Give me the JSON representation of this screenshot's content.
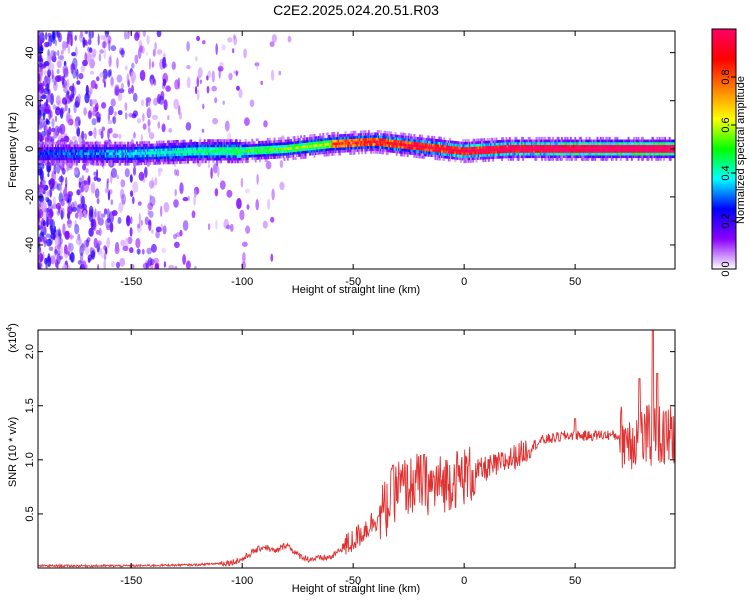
{
  "title": "C2E2.2025.024.20.51.R03",
  "chart_data": [
    {
      "type": "heatmap",
      "xlabel": "Height of straight line (km)",
      "ylabel": "Frequency (Hz)",
      "xlim": [
        -192,
        95
      ],
      "ylim": [
        -50,
        49
      ],
      "xticks": [
        -150,
        -100,
        -50,
        0,
        50
      ],
      "yticks": [
        -40,
        -20,
        0,
        20,
        40
      ],
      "colorbar": {
        "label": "Normalized spectral amplitude",
        "range": [
          0,
          1
        ],
        "ticks": [
          0.0,
          0.2,
          0.4,
          0.6,
          0.8
        ],
        "tick_labels": [
          "0.0",
          "0.2",
          "0.4",
          "0.6",
          "0.8"
        ],
        "colors": [
          "#ffffff",
          "#8b00ff",
          "#0000ff",
          "#00ffff",
          "#00ff00",
          "#ffff00",
          "#ff8000",
          "#ff0000",
          "#ff0066"
        ]
      },
      "ridge_center_hz": [
        {
          "x": -192,
          "y": -2
        },
        {
          "x": -150,
          "y": -2
        },
        {
          "x": -120,
          "y": -1
        },
        {
          "x": -100,
          "y": -1
        },
        {
          "x": -80,
          "y": 0
        },
        {
          "x": -60,
          "y": 2
        },
        {
          "x": -40,
          "y": 3
        },
        {
          "x": -20,
          "y": 1
        },
        {
          "x": -10,
          "y": 0
        },
        {
          "x": 0,
          "y": -1
        },
        {
          "x": 20,
          "y": 0
        },
        {
          "x": 60,
          "y": 0
        },
        {
          "x": 95,
          "y": 0
        }
      ]
    },
    {
      "type": "line",
      "xlabel": "Height of straight line (km)",
      "ylabel": "SNR (10 * v/v)",
      "scale_note": "(x10",
      "scale_exp": "4",
      "xlim": [
        -192,
        95
      ],
      "ylim": [
        0,
        2.2
      ],
      "xticks": [
        -150,
        -100,
        -50,
        0,
        50
      ],
      "yticks": [
        0.5,
        1.0,
        1.5,
        2.0
      ],
      "ytick_labels": [
        "0.5",
        "1.0",
        "1.5",
        "2.0"
      ],
      "color": "#e03030",
      "series": [
        {
          "values": [
            {
              "x": -192,
              "y": 0.02
            },
            {
              "x": -150,
              "y": 0.02
            },
            {
              "x": -120,
              "y": 0.03
            },
            {
              "x": -105,
              "y": 0.05
            },
            {
              "x": -100,
              "y": 0.08
            },
            {
              "x": -95,
              "y": 0.15
            },
            {
              "x": -90,
              "y": 0.2
            },
            {
              "x": -85,
              "y": 0.15
            },
            {
              "x": -80,
              "y": 0.22
            },
            {
              "x": -75,
              "y": 0.12
            },
            {
              "x": -70,
              "y": 0.08
            },
            {
              "x": -60,
              "y": 0.1
            },
            {
              "x": -55,
              "y": 0.18
            },
            {
              "x": -50,
              "y": 0.25
            },
            {
              "x": -45,
              "y": 0.35
            },
            {
              "x": -40,
              "y": 0.45
            },
            {
              "x": -35,
              "y": 0.55
            },
            {
              "x": -30,
              "y": 0.75
            },
            {
              "x": -25,
              "y": 0.75
            },
            {
              "x": -20,
              "y": 0.8
            },
            {
              "x": -15,
              "y": 0.75
            },
            {
              "x": -10,
              "y": 0.78
            },
            {
              "x": -5,
              "y": 0.82
            },
            {
              "x": 0,
              "y": 0.85
            },
            {
              "x": 5,
              "y": 0.88
            },
            {
              "x": 10,
              "y": 0.92
            },
            {
              "x": 15,
              "y": 0.95
            },
            {
              "x": 20,
              "y": 1.0
            },
            {
              "x": 25,
              "y": 1.05
            },
            {
              "x": 30,
              "y": 1.12
            },
            {
              "x": 35,
              "y": 1.18
            },
            {
              "x": 40,
              "y": 1.2
            },
            {
              "x": 45,
              "y": 1.22
            },
            {
              "x": 50,
              "y": 1.23
            },
            {
              "x": 55,
              "y": 1.22
            },
            {
              "x": 60,
              "y": 1.23
            },
            {
              "x": 65,
              "y": 1.23
            },
            {
              "x": 70,
              "y": 1.22
            },
            {
              "x": 75,
              "y": 1.2
            },
            {
              "x": 80,
              "y": 1.2
            },
            {
              "x": 85,
              "y": 1.22
            },
            {
              "x": 90,
              "y": 1.2
            },
            {
              "x": 95,
              "y": 1.25
            }
          ]
        }
      ],
      "peaks": [
        {
          "x": -32,
          "y": 0.95
        },
        {
          "x": -18,
          "y": 1.05
        },
        {
          "x": 50,
          "y": 1.38
        },
        {
          "x": 79,
          "y": 1.75
        },
        {
          "x": 85,
          "y": 2.2
        },
        {
          "x": 87,
          "y": 1.8
        }
      ]
    }
  ]
}
